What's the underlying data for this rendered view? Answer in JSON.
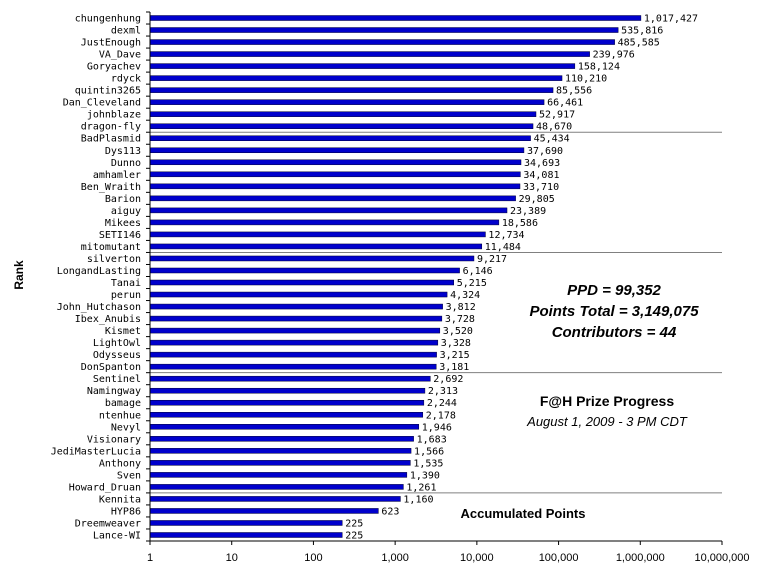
{
  "chart_data": {
    "type": "bar",
    "orientation": "horizontal",
    "x_scale": "log",
    "xlim": [
      1,
      10000000
    ],
    "x_ticks": [
      "1",
      "10",
      "100",
      "1,000",
      "10,000",
      "100,000",
      "1,000,000",
      "10,000,000"
    ],
    "ylabel": "Rank",
    "xlabel": "Accumulated Points",
    "title": "F@H Prize Progress",
    "subtitle": "August 1, 2009 - 3 PM CDT",
    "stats": [
      "PPD = 99,352",
      "Points Total = 3,149,075",
      "Contributors = 44"
    ],
    "bar_color": "#0000cc",
    "categories": [
      "chungenhung",
      "dexml",
      "JustEnough",
      "VA_Dave",
      "Goryachev",
      "rdyck",
      "quintin3265",
      "Dan_Cleveland",
      "johnblaze",
      "dragon-fly",
      "BadPlasmid",
      "Dys113",
      "Dunno",
      "amhamler",
      "Ben_Wraith",
      "Barion",
      "aiguy",
      "Mikees",
      "SETI146",
      "mitomutant",
      "silverton",
      "LongandLasting",
      "Tanai",
      "perun",
      "John_Hutchason",
      "Ibex_Anubis",
      "Kismet",
      "LightOwl",
      "Odysseus",
      "DonSpanton",
      "Sentinel",
      "Namingway",
      "bamage",
      "ntenhue",
      "Nevyl",
      "Visionary",
      "JediMasterLucia",
      "Anthony",
      "Sven",
      "Howard_Druan",
      "Kennita",
      "HYP86",
      "Dreemweaver",
      "Lance-WI"
    ],
    "values": [
      1017427,
      535816,
      485585,
      239976,
      158124,
      110210,
      85556,
      66461,
      52917,
      48670,
      45434,
      37690,
      34693,
      34081,
      33710,
      29805,
      23389,
      18586,
      12734,
      11484,
      9217,
      6146,
      5215,
      4324,
      3812,
      3728,
      3520,
      3328,
      3215,
      3181,
      2692,
      2313,
      2244,
      2178,
      1946,
      1683,
      1566,
      1535,
      1390,
      1261,
      1160,
      623,
      225,
      225
    ],
    "value_labels": [
      "1,017,427",
      "535,816",
      "485,585",
      "239,976",
      "158,124",
      "110,210",
      "85,556",
      "66,461",
      "52,917",
      "48,670",
      "45,434",
      "37,690",
      "34,693",
      "34,081",
      "33,710",
      "29,805",
      "23,389",
      "18,586",
      "12,734",
      "11,484",
      "9,217",
      "6,146",
      "5,215",
      "4,324",
      "3,812",
      "3,728",
      "3,520",
      "3,328",
      "3,215",
      "3,181",
      "2,692",
      "2,313",
      "2,244",
      "2,178",
      "1,946",
      "1,683",
      "1,566",
      "1,535",
      "1,390",
      "1,261",
      "1,160",
      "623",
      "225",
      "225"
    ]
  }
}
